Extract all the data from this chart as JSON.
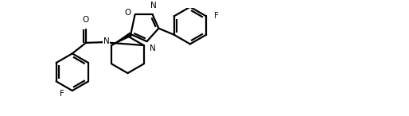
{
  "bg": "#ffffff",
  "lc": "#000000",
  "lw": 1.6,
  "fs": 7.5,
  "dbo": 0.07,
  "figsize": [
    5.14,
    1.46
  ],
  "dpi": 100,
  "xlim": [
    0.0,
    10.5
  ],
  "ylim": [
    0.0,
    3.0
  ]
}
